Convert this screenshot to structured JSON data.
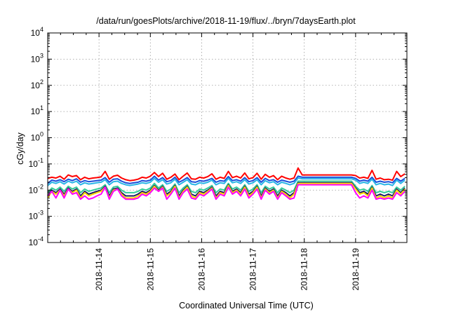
{
  "chart_data": {
    "type": "line",
    "title": "/data/run/goesPlots/archive/2018-11-19/flux/../bryn/7daysEarth.plot",
    "xlabel": "Coordinated Universal Time (UTC)",
    "ylabel": "cGy/day",
    "yscale": "log",
    "ylim": [
      0.0001,
      10000
    ],
    "xlim": [
      0,
      7
    ],
    "grid": true,
    "y_ticks": [
      {
        "mant": "10",
        "exp": "-4"
      },
      {
        "mant": "10",
        "exp": "-3"
      },
      {
        "mant": "10",
        "exp": "-2"
      },
      {
        "mant": "10",
        "exp": "-1"
      },
      {
        "mant": "10",
        "exp": "0"
      },
      {
        "mant": "10",
        "exp": "1"
      },
      {
        "mant": "10",
        "exp": "2"
      },
      {
        "mant": "10",
        "exp": "3"
      },
      {
        "mant": "10",
        "exp": "4"
      }
    ],
    "x_ticks": [
      {
        "label": "2018-11-14",
        "x": 1.0
      },
      {
        "label": "2018-11-15",
        "x": 2.0
      },
      {
        "label": "2018-11-16",
        "x": 3.0
      },
      {
        "label": "2018-11-17",
        "x": 4.0
      },
      {
        "label": "2018-11-18",
        "x": 5.0
      },
      {
        "label": "2018-11-19",
        "x": 6.0
      }
    ],
    "x": [
      0,
      0.08,
      0.16,
      0.24,
      0.32,
      0.4,
      0.48,
      0.56,
      0.64,
      0.72,
      0.8,
      0.88,
      0.96,
      1.04,
      1.12,
      1.2,
      1.28,
      1.36,
      1.44,
      1.52,
      1.6,
      1.68,
      1.76,
      1.84,
      1.92,
      2.0,
      2.08,
      2.16,
      2.24,
      2.32,
      2.4,
      2.48,
      2.56,
      2.64,
      2.72,
      2.8,
      2.88,
      2.96,
      3.04,
      3.12,
      3.2,
      3.28,
      3.36,
      3.44,
      3.52,
      3.6,
      3.68,
      3.76,
      3.84,
      3.92,
      4.0,
      4.08,
      4.16,
      4.24,
      4.32,
      4.4,
      4.48,
      4.56,
      4.64,
      4.72,
      4.8,
      4.88,
      4.96,
      5.04,
      5.12,
      5.2,
      5.28,
      5.36,
      5.44,
      5.52,
      5.6,
      5.68,
      5.76,
      5.84,
      5.92,
      6.0,
      6.08,
      6.16,
      6.24,
      6.32,
      6.4,
      6.48,
      6.56,
      6.64,
      6.72,
      6.8,
      6.88,
      6.96
    ],
    "series": [
      {
        "name": "red",
        "color": "#ff0000",
        "values": [
          0.028,
          0.031,
          0.029,
          0.034,
          0.026,
          0.038,
          0.033,
          0.036,
          0.025,
          0.031,
          0.027,
          0.029,
          0.03,
          0.032,
          0.052,
          0.026,
          0.034,
          0.037,
          0.029,
          0.025,
          0.023,
          0.024,
          0.026,
          0.031,
          0.029,
          0.034,
          0.047,
          0.033,
          0.044,
          0.026,
          0.031,
          0.041,
          0.025,
          0.034,
          0.045,
          0.027,
          0.026,
          0.031,
          0.029,
          0.033,
          0.042,
          0.026,
          0.031,
          0.028,
          0.052,
          0.03,
          0.034,
          0.029,
          0.045,
          0.027,
          0.03,
          0.044,
          0.026,
          0.04,
          0.031,
          0.036,
          0.025,
          0.034,
          0.029,
          0.026,
          0.029,
          0.07,
          0.038,
          0.038,
          0.038,
          0.038,
          0.038,
          0.038,
          0.038,
          0.038,
          0.038,
          0.038,
          0.038,
          0.038,
          0.038,
          0.036,
          0.029,
          0.031,
          0.028,
          0.057,
          0.026,
          0.029,
          0.025,
          0.026,
          0.024,
          0.052,
          0.033,
          0.042
        ]
      },
      {
        "name": "blue",
        "color": "#1a4fd9",
        "values": [
          0.018,
          0.024,
          0.022,
          0.025,
          0.021,
          0.026,
          0.023,
          0.027,
          0.02,
          0.023,
          0.021,
          0.022,
          0.023,
          0.024,
          0.03,
          0.02,
          0.026,
          0.027,
          0.022,
          0.019,
          0.018,
          0.019,
          0.02,
          0.023,
          0.022,
          0.024,
          0.034,
          0.024,
          0.03,
          0.021,
          0.023,
          0.031,
          0.02,
          0.024,
          0.03,
          0.021,
          0.02,
          0.023,
          0.022,
          0.024,
          0.028,
          0.02,
          0.023,
          0.022,
          0.033,
          0.023,
          0.025,
          0.022,
          0.03,
          0.021,
          0.023,
          0.03,
          0.02,
          0.028,
          0.023,
          0.025,
          0.02,
          0.024,
          0.022,
          0.02,
          0.022,
          0.034,
          0.031,
          0.031,
          0.031,
          0.031,
          0.031,
          0.031,
          0.031,
          0.031,
          0.031,
          0.031,
          0.031,
          0.031,
          0.031,
          0.028,
          0.022,
          0.024,
          0.022,
          0.031,
          0.02,
          0.022,
          0.02,
          0.021,
          0.019,
          0.028,
          0.022,
          0.028
        ]
      },
      {
        "name": "cyan",
        "color": "#29b6e6",
        "values": [
          0.015,
          0.02,
          0.018,
          0.021,
          0.017,
          0.022,
          0.019,
          0.022,
          0.016,
          0.019,
          0.017,
          0.018,
          0.019,
          0.02,
          0.025,
          0.016,
          0.021,
          0.022,
          0.018,
          0.016,
          0.015,
          0.016,
          0.017,
          0.019,
          0.018,
          0.02,
          0.028,
          0.02,
          0.025,
          0.017,
          0.019,
          0.026,
          0.016,
          0.02,
          0.025,
          0.017,
          0.016,
          0.019,
          0.018,
          0.02,
          0.024,
          0.016,
          0.019,
          0.018,
          0.028,
          0.019,
          0.021,
          0.018,
          0.025,
          0.017,
          0.019,
          0.025,
          0.016,
          0.023,
          0.019,
          0.021,
          0.016,
          0.02,
          0.018,
          0.016,
          0.018,
          0.029,
          0.027,
          0.027,
          0.027,
          0.027,
          0.027,
          0.027,
          0.027,
          0.027,
          0.027,
          0.027,
          0.027,
          0.027,
          0.027,
          0.024,
          0.018,
          0.02,
          0.018,
          0.026,
          0.016,
          0.018,
          0.016,
          0.017,
          0.015,
          0.024,
          0.018,
          0.024
        ]
      },
      {
        "name": "green",
        "color": "#33cc99",
        "values": [
          0.008,
          0.012,
          0.01,
          0.013,
          0.009,
          0.014,
          0.011,
          0.013,
          0.008,
          0.011,
          0.009,
          0.01,
          0.011,
          0.012,
          0.016,
          0.008,
          0.013,
          0.014,
          0.01,
          0.008,
          0.008,
          0.008,
          0.009,
          0.011,
          0.01,
          0.012,
          0.018,
          0.012,
          0.016,
          0.009,
          0.011,
          0.017,
          0.008,
          0.012,
          0.016,
          0.009,
          0.008,
          0.011,
          0.01,
          0.012,
          0.015,
          0.008,
          0.011,
          0.01,
          0.018,
          0.011,
          0.013,
          0.01,
          0.016,
          0.009,
          0.011,
          0.016,
          0.008,
          0.014,
          0.011,
          0.013,
          0.008,
          0.012,
          0.01,
          0.008,
          0.01,
          0.022,
          0.022,
          0.022,
          0.022,
          0.022,
          0.022,
          0.022,
          0.022,
          0.022,
          0.022,
          0.022,
          0.022,
          0.022,
          0.022,
          0.014,
          0.01,
          0.011,
          0.009,
          0.015,
          0.008,
          0.009,
          0.008,
          0.009,
          0.008,
          0.013,
          0.01,
          0.014
        ]
      },
      {
        "name": "navy",
        "color": "#1a1a66",
        "values": [
          0.006,
          0.01,
          0.008,
          0.011,
          0.007,
          0.012,
          0.009,
          0.011,
          0.006,
          0.009,
          0.007,
          0.008,
          0.009,
          0.01,
          0.014,
          0.006,
          0.011,
          0.012,
          0.008,
          0.006,
          0.006,
          0.006,
          0.007,
          0.009,
          0.008,
          0.01,
          0.015,
          0.01,
          0.014,
          0.007,
          0.009,
          0.015,
          0.006,
          0.01,
          0.014,
          0.007,
          0.006,
          0.009,
          0.008,
          0.01,
          0.013,
          0.006,
          0.009,
          0.008,
          0.016,
          0.009,
          0.011,
          0.008,
          0.014,
          0.007,
          0.009,
          0.014,
          0.006,
          0.012,
          0.009,
          0.011,
          0.006,
          0.01,
          0.008,
          0.006,
          0.008,
          0.019,
          0.019,
          0.019,
          0.019,
          0.019,
          0.019,
          0.019,
          0.019,
          0.019,
          0.019,
          0.019,
          0.019,
          0.019,
          0.019,
          0.012,
          0.008,
          0.009,
          0.007,
          0.013,
          0.006,
          0.007,
          0.006,
          0.007,
          0.006,
          0.011,
          0.008,
          0.012
        ]
      },
      {
        "name": "yellow",
        "color": "#ffd800",
        "values": [
          0.005,
          0.009,
          0.007,
          0.01,
          0.006,
          0.011,
          0.008,
          0.01,
          0.005,
          0.008,
          0.006,
          0.007,
          0.008,
          0.009,
          0.013,
          0.005,
          0.01,
          0.011,
          0.007,
          0.005,
          0.005,
          0.005,
          0.006,
          0.008,
          0.007,
          0.009,
          0.014,
          0.009,
          0.013,
          0.006,
          0.008,
          0.014,
          0.005,
          0.009,
          0.013,
          0.006,
          0.005,
          0.008,
          0.007,
          0.009,
          0.012,
          0.005,
          0.008,
          0.007,
          0.015,
          0.008,
          0.01,
          0.007,
          0.013,
          0.006,
          0.008,
          0.013,
          0.005,
          0.011,
          0.008,
          0.01,
          0.005,
          0.009,
          0.007,
          0.005,
          0.007,
          0.018,
          0.018,
          0.018,
          0.018,
          0.018,
          0.018,
          0.018,
          0.018,
          0.018,
          0.018,
          0.018,
          0.018,
          0.018,
          0.018,
          0.011,
          0.007,
          0.008,
          0.006,
          0.012,
          0.005,
          0.006,
          0.005,
          0.006,
          0.005,
          0.01,
          0.007,
          0.011
        ]
      },
      {
        "name": "magenta",
        "color": "#ff00ff",
        "values": [
          0.006,
          0.009,
          0.005,
          0.01,
          0.005,
          0.011,
          0.007,
          0.008,
          0.0045,
          0.006,
          0.0045,
          0.005,
          0.006,
          0.007,
          0.013,
          0.0045,
          0.009,
          0.011,
          0.006,
          0.0045,
          0.0045,
          0.0045,
          0.005,
          0.007,
          0.006,
          0.008,
          0.012,
          0.009,
          0.012,
          0.0045,
          0.007,
          0.012,
          0.0045,
          0.008,
          0.011,
          0.005,
          0.0045,
          0.007,
          0.006,
          0.008,
          0.011,
          0.0045,
          0.007,
          0.006,
          0.013,
          0.007,
          0.009,
          0.006,
          0.011,
          0.005,
          0.007,
          0.011,
          0.0045,
          0.01,
          0.007,
          0.009,
          0.0045,
          0.008,
          0.006,
          0.0045,
          0.005,
          0.016,
          0.016,
          0.016,
          0.016,
          0.016,
          0.016,
          0.016,
          0.016,
          0.016,
          0.016,
          0.016,
          0.016,
          0.016,
          0.016,
          0.008,
          0.005,
          0.006,
          0.005,
          0.01,
          0.0045,
          0.005,
          0.0045,
          0.005,
          0.0045,
          0.008,
          0.006,
          0.009
        ]
      }
    ]
  }
}
